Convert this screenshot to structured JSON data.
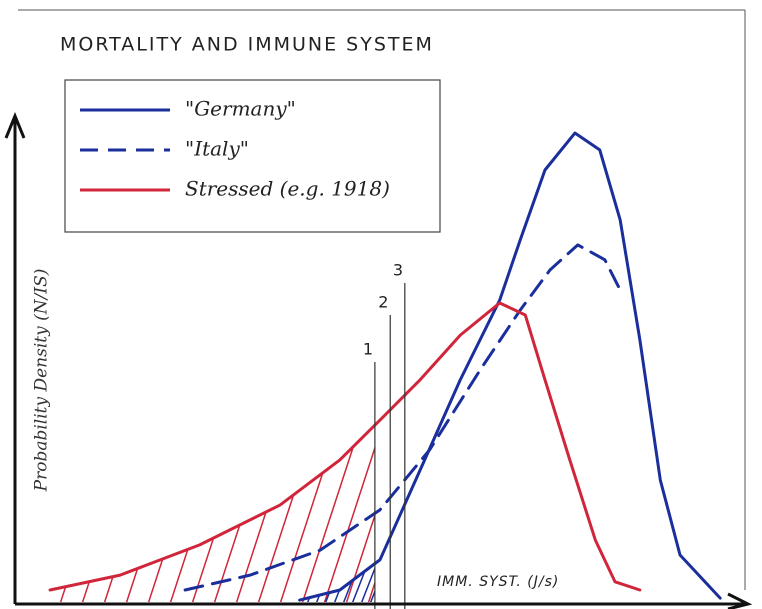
{
  "chart_data": {
    "type": "line",
    "title": "MORTALITY AND IMMUNE SYSTEM",
    "y_label": "Probability Density (N/IS)",
    "x_label": "IMM. SYST. (J/s)",
    "xlim": [
      0,
      100
    ],
    "ylim": [
      0,
      100
    ],
    "series": [
      {
        "name": "\"Germany\"",
        "color": "#1a2e9c",
        "style": "solid",
        "x": [
          39,
          44.5,
          50,
          55.5,
          61,
          66.4,
          69.2,
          72.6,
          76.7,
          80.1,
          82.9,
          85.6,
          88.4,
          91.1,
          96.6
        ],
        "values": [
          0.4,
          2.5,
          8.8,
          27.5,
          46.3,
          62.9,
          75.4,
          90,
          97.7,
          94.2,
          79.6,
          54.6,
          25.4,
          9.8,
          0.8
        ]
      },
      {
        "name": "\"Italy\"",
        "color": "#1a2e9c",
        "style": "dashed",
        "x": [
          23.3,
          32.2,
          41.8,
          50,
          56.8,
          63.7,
          69.2,
          73.3,
          77.1,
          80.8,
          82.9
        ],
        "values": [
          2.5,
          5.6,
          10.8,
          19.2,
          31.7,
          48.3,
          60.8,
          69.2,
          74.4,
          71.3,
          65
        ]
      },
      {
        "name": "Stressed (e.g. 1918)",
        "color": "#d0253a",
        "style": "solid",
        "x": [
          4.8,
          14.4,
          25.3,
          36.3,
          44.5,
          50,
          55.5,
          61,
          66.4,
          69.9,
          72.6,
          76,
          79.5,
          82.2,
          85.6
        ],
        "values": [
          2.5,
          5.6,
          11.9,
          20.2,
          29.6,
          37.9,
          46.3,
          55.6,
          62.3,
          59.8,
          46.3,
          29.6,
          12.9,
          4.2,
          2.5
        ]
      }
    ],
    "thresholds": [
      {
        "label": "1",
        "x": 49.3
      },
      {
        "label": "2",
        "x": 51.4
      },
      {
        "label": "3",
        "x": 53.4
      }
    ]
  }
}
